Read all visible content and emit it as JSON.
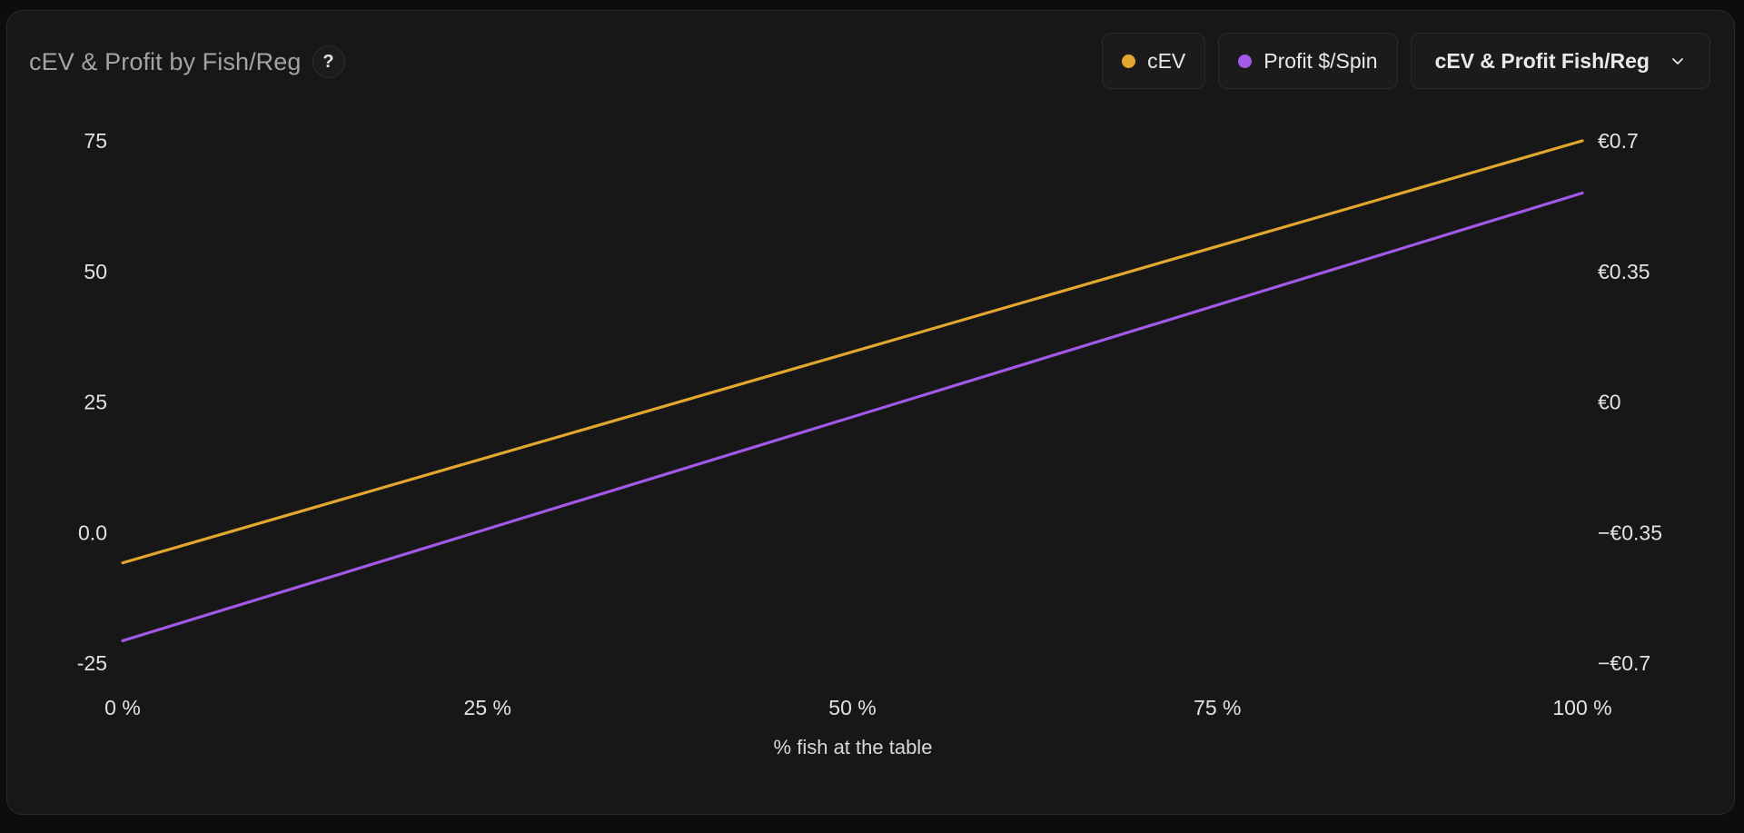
{
  "header": {
    "title": "cEV & Profit by Fish/Reg",
    "help_label": "?"
  },
  "controls": {
    "legend": [
      {
        "label": "cEV",
        "color": "#e3a72f"
      },
      {
        "label": "Profit $/Spin",
        "color": "#a259e8"
      }
    ],
    "select_label": "cEV & Profit Fish/Reg"
  },
  "chart_data": {
    "type": "line",
    "xlabel": "% fish at the table",
    "x_ticks": [
      "0 %",
      "25 %",
      "50 %",
      "75 %",
      "100 %"
    ],
    "xlim": [
      0,
      100
    ],
    "y_left_ticks": [
      "75",
      "50",
      "25",
      "0.0",
      "-25"
    ],
    "ylim_left": [
      -25,
      75
    ],
    "y_right_ticks": [
      "€0.7",
      "€0.35",
      "€0",
      "−€0.35",
      "−€0.7"
    ],
    "ylim_right": [
      -0.7,
      0.7
    ],
    "series": [
      {
        "name": "cEV",
        "axis": "left",
        "color": "#e3a72f",
        "x": [
          0,
          100
        ],
        "y": [
          -5.8,
          75
        ]
      },
      {
        "name": "Profit $/Spin",
        "axis": "right",
        "color": "#a259e8",
        "x": [
          0,
          100
        ],
        "y": [
          -0.64,
          0.56
        ]
      }
    ]
  }
}
